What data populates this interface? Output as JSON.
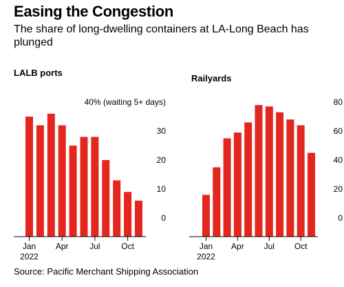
{
  "title": "Easing the Congestion",
  "subtitle": "The share of long-dwelling containers at LA-Long Beach has plunged",
  "source": "Source: Pacific Merchant Shipping Association",
  "colors": {
    "bar": "#e3271e",
    "axis": "#000000"
  },
  "chart_data": [
    {
      "type": "bar",
      "title": "LALB ports",
      "ylabel": "40% (waiting 5+ days)",
      "ylim": [
        0,
        40
      ],
      "yticks": [
        {
          "value": 40,
          "label": "40% (waiting 5+ days)"
        },
        {
          "value": 30,
          "label": "30"
        },
        {
          "value": 20,
          "label": "20"
        },
        {
          "value": 10,
          "label": "10"
        },
        {
          "value": 0,
          "label": "0"
        }
      ],
      "categories": [
        "Jan",
        "Feb",
        "Mar",
        "Apr",
        "May",
        "Jun",
        "Jul",
        "Aug",
        "Sep",
        "Oct",
        "Nov"
      ],
      "values": [
        35,
        32,
        36,
        32,
        25,
        28,
        28,
        20,
        13,
        9,
        6
      ],
      "xtick_labels": [
        "Jan",
        "Apr",
        "Jul",
        "Oct"
      ],
      "xtick_index": [
        0,
        3,
        6,
        9
      ],
      "year_label": "2022",
      "grid": false
    },
    {
      "type": "bar",
      "title": "Railyards",
      "ylim": [
        0,
        80
      ],
      "yticks": [
        {
          "value": 80,
          "label": "80"
        },
        {
          "value": 60,
          "label": "60"
        },
        {
          "value": 40,
          "label": "40"
        },
        {
          "value": 20,
          "label": "20"
        },
        {
          "value": 0,
          "label": "0"
        }
      ],
      "categories": [
        "Jan",
        "Feb",
        "Mar",
        "Apr",
        "May",
        "Jun",
        "Jul",
        "Aug",
        "Sep",
        "Oct",
        "Nov"
      ],
      "values": [
        16,
        35,
        55,
        59,
        66,
        78,
        77,
        73,
        68,
        64,
        45
      ],
      "xtick_labels": [
        "Jan",
        "Apr",
        "Jul",
        "Oct"
      ],
      "xtick_index": [
        0,
        3,
        6,
        9
      ],
      "year_label": "2022",
      "grid": false
    }
  ]
}
